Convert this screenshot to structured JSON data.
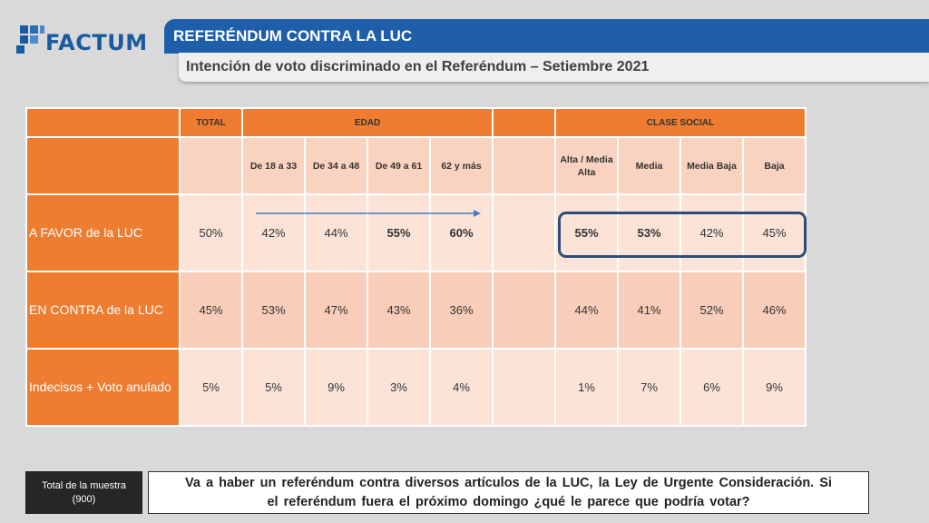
{
  "brand": {
    "name": "FACTUM"
  },
  "header": {
    "title": "REFERÉNDUM CONTRA LA LUC",
    "subtitle": "Intención de voto discriminado en el Referéndum – Setiembre 2021"
  },
  "table": {
    "group_headers": {
      "total": "TOTAL",
      "edad": "EDAD",
      "clase_social": "CLASE SOCIAL"
    },
    "sub_headers": [
      "De 18 a 33",
      "De 34 a 48",
      "De 49 a 61",
      "62 y más",
      "Alta / Media Alta",
      "Media",
      "Media Baja",
      "Baja"
    ],
    "rows": [
      {
        "label": "A FAVOR de la LUC",
        "total": "50%",
        "edad": [
          "42%",
          "44%",
          "55%",
          "60%"
        ],
        "clase": [
          "55%",
          "53%",
          "42%",
          "45%"
        ]
      },
      {
        "label": "EN CONTRA de la LUC",
        "total": "45%",
        "edad": [
          "53%",
          "47%",
          "43%",
          "36%"
        ],
        "clase": [
          "44%",
          "41%",
          "52%",
          "46%"
        ]
      },
      {
        "label": "Indecisos + Voto anulado",
        "total": "5%",
        "edad": [
          "5%",
          "9%",
          "3%",
          "4%"
        ],
        "clase": [
          "1%",
          "7%",
          "6%",
          "9%"
        ]
      }
    ]
  },
  "footer": {
    "sample_label": "Total de la muestra",
    "sample_value": "(900)",
    "question": "Va a haber un referéndum contra diversos artículos de la LUC, la Ley de Urgente Consideración. Si el referéndum fuera el próximo domingo ¿qué le parece que podría votar?"
  },
  "colors": {
    "brand_blue": "#1f5ea8",
    "orange": "#ee7d31",
    "light_orange": "#fbe3d8",
    "highlight_border": "#2c4d75"
  }
}
